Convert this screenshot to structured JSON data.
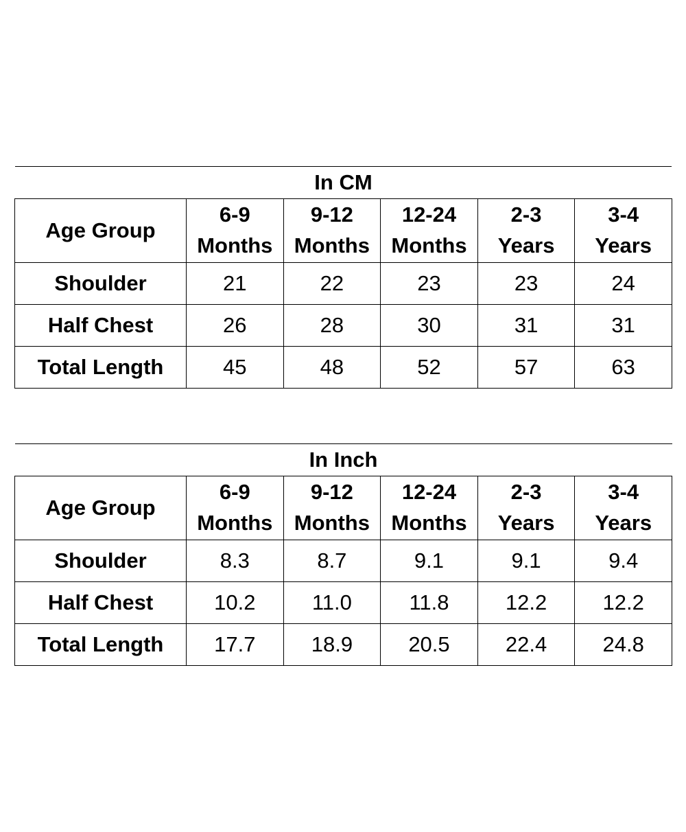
{
  "tables": [
    {
      "title": "In CM",
      "header": {
        "label": "Age Group",
        "columns": [
          {
            "line1": "6-9",
            "line2": "Months"
          },
          {
            "line1": "9-12",
            "line2": "Months"
          },
          {
            "line1": "12-24",
            "line2": "Months"
          },
          {
            "line1": "2-3",
            "line2": "Years"
          },
          {
            "line1": "3-4",
            "line2": "Years"
          }
        ]
      },
      "rows": [
        {
          "label": "Shoulder",
          "values": [
            "21",
            "22",
            "23",
            "23",
            "24"
          ]
        },
        {
          "label": "Half Chest",
          "values": [
            "26",
            "28",
            "30",
            "31",
            "31"
          ]
        },
        {
          "label": "Total Length",
          "values": [
            "45",
            "48",
            "52",
            "57",
            "63"
          ]
        }
      ]
    },
    {
      "title": "In Inch",
      "header": {
        "label": "Age Group",
        "columns": [
          {
            "line1": "6-9",
            "line2": "Months"
          },
          {
            "line1": "9-12",
            "line2": "Months"
          },
          {
            "line1": "12-24",
            "line2": "Months"
          },
          {
            "line1": "2-3",
            "line2": "Years"
          },
          {
            "line1": "3-4",
            "line2": "Years"
          }
        ]
      },
      "rows": [
        {
          "label": "Shoulder",
          "values": [
            "8.3",
            "8.7",
            "9.1",
            "9.1",
            "9.4"
          ]
        },
        {
          "label": "Half Chest",
          "values": [
            "10.2",
            "11.0",
            "11.8",
            "12.2",
            "12.2"
          ]
        },
        {
          "label": "Total Length",
          "values": [
            "17.7",
            "18.9",
            "20.5",
            "22.4",
            "24.8"
          ]
        }
      ]
    }
  ]
}
